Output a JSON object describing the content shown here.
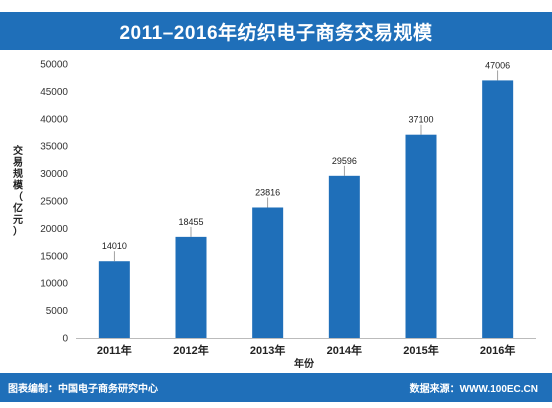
{
  "header": {
    "title": "2011–2016年纺织电子商务交易规模"
  },
  "chart_data": {
    "type": "bar",
    "categories": [
      "2011年",
      "2012年",
      "2013年",
      "2014年",
      "2015年",
      "2016年"
    ],
    "values": [
      14010,
      18455,
      23816,
      29596,
      37100,
      47006
    ],
    "data_labels": [
      "14010",
      "18455",
      "23816",
      "29596",
      "37100",
      "47006"
    ],
    "title": "2011–2016年纺织电子商务交易规模",
    "xlabel": "年份",
    "ylabel": "交易规模（亿元）",
    "ylim": [
      0,
      50000
    ],
    "yticks": [
      0,
      5000,
      10000,
      15000,
      20000,
      25000,
      30000,
      35000,
      40000,
      45000,
      50000
    ],
    "ytick_labels": [
      "0",
      "5000",
      "10000",
      "15000",
      "20000",
      "25000",
      "30000",
      "35000",
      "40000",
      "45000",
      "50000"
    ],
    "grid": false,
    "bar_color": "#1f6fb9"
  },
  "footer": {
    "left": "图表编制：中国电子商务研究中心",
    "right": "数据来源：WWW.100EC.CN"
  },
  "colors": {
    "brand": "#1f6fb9"
  }
}
